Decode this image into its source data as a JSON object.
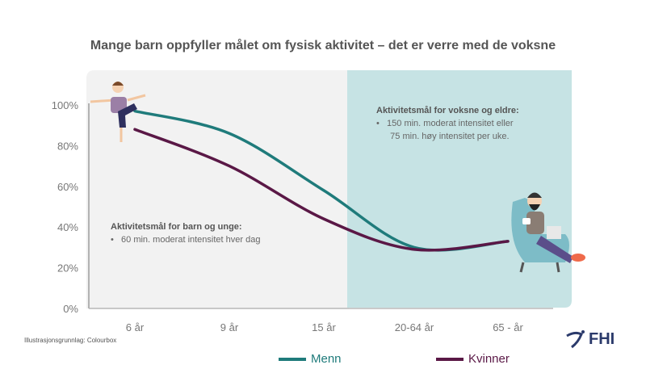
{
  "title": "Mange barn oppfyller målet om fysisk aktivitet – det er verre med de voksne",
  "credit": "Illustrasjonsgrunnlag: Colourbox",
  "annotations": {
    "children": {
      "heading": "Aktivitetsmål for barn og unge:",
      "bullets": [
        "60 min. moderat intensitet  hver dag"
      ]
    },
    "adults": {
      "heading": "Aktivitetsmål for voksne og eldre:",
      "bullets": [
        "150 min. moderat intensitet eller",
        "75 min. høy intensitet per uke."
      ]
    }
  },
  "logo": {
    "text": "FHI"
  },
  "colors": {
    "menn": "#1f7b7b",
    "kvinner": "#5a1846",
    "children_panel": "#f2f2f2",
    "adults_panel": "#c6e3e4",
    "axis_text": "#777777"
  },
  "chart_data": {
    "type": "line",
    "title": "Mange barn oppfyller målet om fysisk aktivitet – det er verre med de voksne",
    "categories": [
      "6 år",
      "9 år",
      "15 år",
      "20-64 år",
      "65 - år"
    ],
    "yticks": [
      "0%",
      "20%",
      "40%",
      "60%",
      "80%",
      "100%"
    ],
    "ylim": [
      0,
      100
    ],
    "grid": false,
    "legend": "bottom",
    "series": [
      {
        "name": "Menn",
        "values": [
          97,
          86,
          58,
          30,
          33
        ]
      },
      {
        "name": "Kvinner",
        "values": [
          88,
          70,
          44,
          29,
          33
        ]
      }
    ]
  }
}
